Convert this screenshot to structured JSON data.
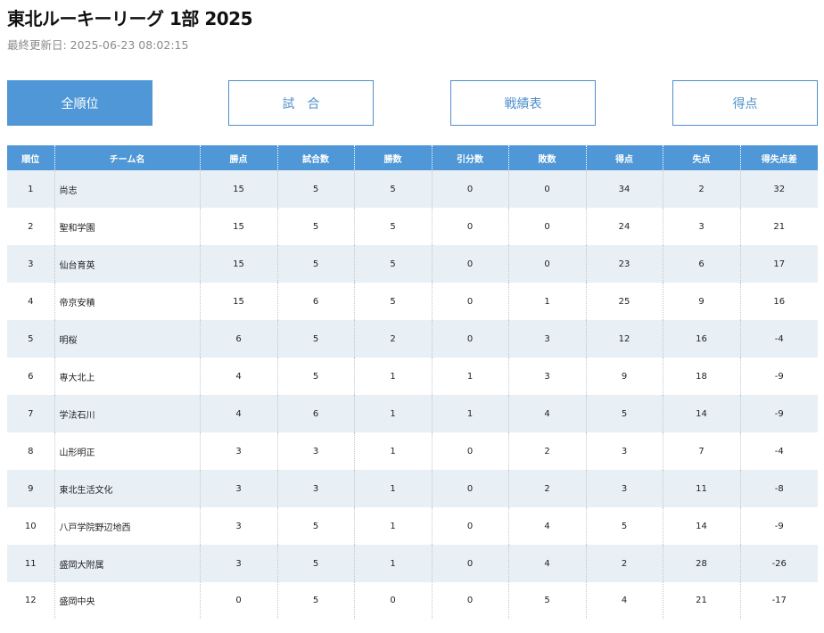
{
  "header": {
    "title": "東北ルーキーリーグ 1部 2025",
    "updated": "最終更新日: 2025-06-23 08:02:15"
  },
  "tabs": [
    {
      "label": "全順位",
      "active": true
    },
    {
      "label": "試　合",
      "active": false
    },
    {
      "label": "戦績表",
      "active": false
    },
    {
      "label": "得点",
      "active": false
    }
  ],
  "colors": {
    "accent": "#4f97d6",
    "row_stripe": "#e8f0f6"
  },
  "table": {
    "columns": [
      "順位",
      "チーム名",
      "勝点",
      "試合数",
      "勝数",
      "引分数",
      "敗数",
      "得点",
      "失点",
      "得失点差"
    ],
    "rows": [
      [
        "1",
        "尚志",
        "15",
        "5",
        "5",
        "0",
        "0",
        "34",
        "2",
        "32"
      ],
      [
        "2",
        "聖和学園",
        "15",
        "5",
        "5",
        "0",
        "0",
        "24",
        "3",
        "21"
      ],
      [
        "3",
        "仙台育英",
        "15",
        "5",
        "5",
        "0",
        "0",
        "23",
        "6",
        "17"
      ],
      [
        "4",
        "帝京安積",
        "15",
        "6",
        "5",
        "0",
        "1",
        "25",
        "9",
        "16"
      ],
      [
        "5",
        "明桜",
        "6",
        "5",
        "2",
        "0",
        "3",
        "12",
        "16",
        "-4"
      ],
      [
        "6",
        "専大北上",
        "4",
        "5",
        "1",
        "1",
        "3",
        "9",
        "18",
        "-9"
      ],
      [
        "7",
        "学法石川",
        "4",
        "6",
        "1",
        "1",
        "4",
        "5",
        "14",
        "-9"
      ],
      [
        "8",
        "山形明正",
        "3",
        "3",
        "1",
        "0",
        "2",
        "3",
        "7",
        "-4"
      ],
      [
        "9",
        "東北生活文化",
        "3",
        "3",
        "1",
        "0",
        "2",
        "3",
        "11",
        "-8"
      ],
      [
        "10",
        "八戸学院野辺地西",
        "3",
        "5",
        "1",
        "0",
        "4",
        "5",
        "14",
        "-9"
      ],
      [
        "11",
        "盛岡大附属",
        "3",
        "5",
        "1",
        "0",
        "4",
        "2",
        "28",
        "-26"
      ],
      [
        "12",
        "盛岡中央",
        "0",
        "5",
        "0",
        "0",
        "5",
        "4",
        "21",
        "-17"
      ]
    ]
  }
}
